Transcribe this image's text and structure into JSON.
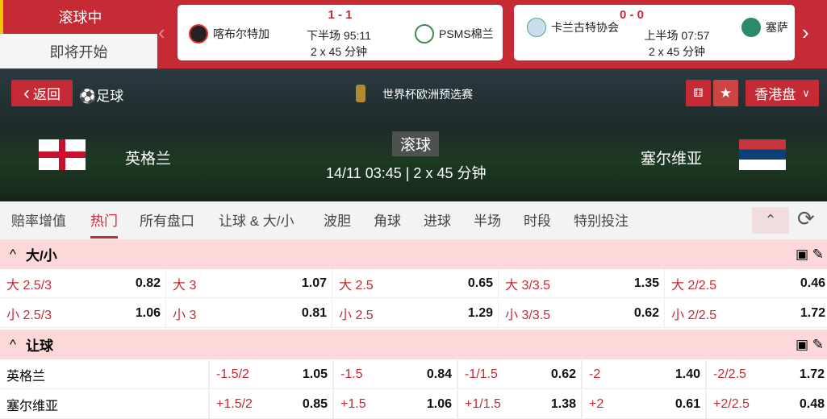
{
  "top": {
    "tabs": [
      "滚球中",
      "即将开始"
    ],
    "matches": [
      {
        "home": "喀布尔特加",
        "away": "PSMS棉兰",
        "score": "1 - 1",
        "period": "下半场 95:11",
        "format": "2 x 45 分钟"
      },
      {
        "home": "卡兰古特协会",
        "away": "塞萨",
        "score": "0 - 0",
        "period": "上半场 07:57",
        "format": "2 x 45 分钟"
      }
    ]
  },
  "hero": {
    "back": "返回",
    "sport": "足球",
    "league": "世界杯欧洲预选赛",
    "home": "英格兰",
    "away": "塞尔维亚",
    "status": "滚球",
    "datetime": "14/11 03:45 | 2 x 45 分钟",
    "odds_type": "香港盘"
  },
  "tabs": [
    "赔率增值",
    "热门",
    "所有盘口",
    "让球 & 大/小",
    "波胆",
    "角球",
    "进球",
    "半场",
    "时段",
    "特别投注"
  ],
  "ou": {
    "title": "大/小",
    "rows": [
      [
        [
          "大 2.5/3",
          "0.82"
        ],
        [
          "大 3",
          "1.07"
        ],
        [
          "大 2.5",
          "0.65"
        ],
        [
          "大 3/3.5",
          "1.35"
        ],
        [
          "大 2/2.5",
          "0.46"
        ]
      ],
      [
        [
          "小 2.5/3",
          "1.06"
        ],
        [
          "小 3",
          "0.81"
        ],
        [
          "小 2.5",
          "1.29"
        ],
        [
          "小 3/3.5",
          "0.62"
        ],
        [
          "小 2/2.5",
          "1.72"
        ]
      ]
    ]
  },
  "hdp": {
    "title": "让球",
    "rows": [
      {
        "team": "英格兰",
        "cells": [
          [
            "-1.5/2",
            "1.05"
          ],
          [
            "-1.5",
            "0.84"
          ],
          [
            "-1/1.5",
            "0.62"
          ],
          [
            "-2",
            "1.40"
          ],
          [
            "-2/2.5",
            "1.72"
          ]
        ]
      },
      {
        "team": "塞尔维亚",
        "cells": [
          [
            "+1.5/2",
            "0.85"
          ],
          [
            "+1.5",
            "1.06"
          ],
          [
            "+1/1.5",
            "1.38"
          ],
          [
            "+2",
            "0.61"
          ],
          [
            "+2/2.5",
            "0.48"
          ]
        ]
      }
    ]
  },
  "colors": {
    "brand": "#c62a35",
    "section": "#fdd8d8"
  }
}
